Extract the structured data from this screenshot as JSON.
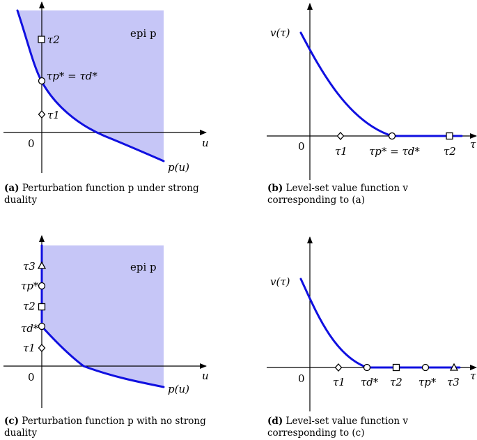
{
  "panel_a": {
    "epi": "epi p",
    "tau2": "τ2",
    "tau_eq": "τp* = τd*",
    "tau1": "τ1",
    "origin": "0",
    "u_label": "u",
    "p_label": "p(u)"
  },
  "panel_b": {
    "v_label": "v(τ)",
    "origin": "0",
    "tau1": "τ1",
    "tau_eq": "τp* = τd*",
    "tau2": "τ2",
    "tau_axis": "τ"
  },
  "panel_c": {
    "epi": "epi p",
    "tau3": "τ3",
    "taup": "τp*",
    "tau2": "τ2",
    "taud": "τd*",
    "tau1": "τ1",
    "origin": "0",
    "u_label": "u",
    "p_label": "p(u)"
  },
  "panel_d": {
    "v_label": "v(τ)",
    "origin": "0",
    "tau1": "τ1",
    "taud": "τd*",
    "tau2": "τ2",
    "taup": "τp*",
    "tau3": "τ3",
    "tau_axis": "τ"
  },
  "captions": {
    "a_tag": "(a)",
    "a_text": "Perturbation function p under strong duality",
    "b_tag": "(b)",
    "b_text": "Level-set value function v corresponding to (a)",
    "c_tag": "(c)",
    "c_text": "Perturbation function p with no strong duality",
    "d_tag": "(d)",
    "d_text": "Level-set value function v corresponding to (c)"
  }
}
